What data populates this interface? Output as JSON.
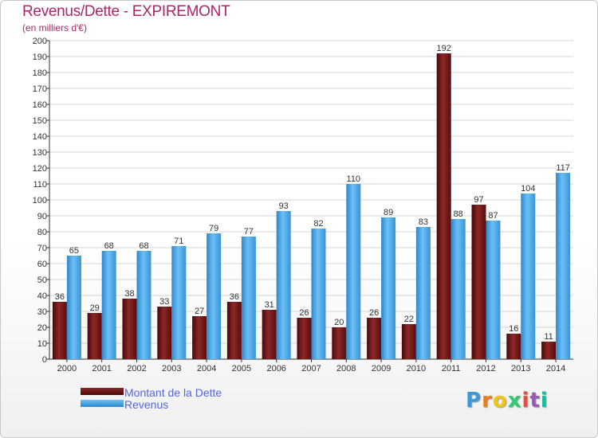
{
  "title": "Revenus/Dette - EXPIREMONT",
  "subtitle": "(en milliers d'€)",
  "logo": {
    "parts": [
      "P",
      "r",
      "o",
      "x",
      "i",
      "t",
      "i"
    ],
    "colors": [
      "#3a9ad9",
      "#e67e22",
      "#f1c40f",
      "#2ecc71",
      "#e74c3c",
      "#9b59b6",
      "#1abc9c"
    ]
  },
  "colors": {
    "dette": "#6b0f0f",
    "revenus": "#4aa3e6",
    "title": "#b0236a",
    "legend_text": "#5566dd",
    "grid": "#d6d6d6"
  },
  "chart_data": {
    "type": "bar",
    "categories": [
      "2000",
      "2001",
      "2002",
      "2003",
      "2004",
      "2005",
      "2006",
      "2007",
      "2008",
      "2009",
      "2010",
      "2011",
      "2012",
      "2013",
      "2014"
    ],
    "series": [
      {
        "name": "Montant de la Dette",
        "values": [
          36,
          29,
          38,
          33,
          27,
          36,
          31,
          26,
          20,
          26,
          22,
          192,
          97,
          16,
          11
        ]
      },
      {
        "name": "Revenus",
        "values": [
          65,
          68,
          68,
          71,
          79,
          77,
          93,
          82,
          110,
          89,
          83,
          88,
          87,
          104,
          117
        ]
      }
    ],
    "title": "Revenus/Dette - EXPIREMONT",
    "subtitle": "(en milliers d'€)",
    "ylim": [
      0,
      200
    ],
    "yticks": [
      0,
      10,
      20,
      30,
      40,
      50,
      60,
      70,
      80,
      90,
      100,
      110,
      120,
      130,
      140,
      150,
      160,
      170,
      180,
      190,
      200
    ],
    "grid": true,
    "legend": "bottom-left"
  }
}
